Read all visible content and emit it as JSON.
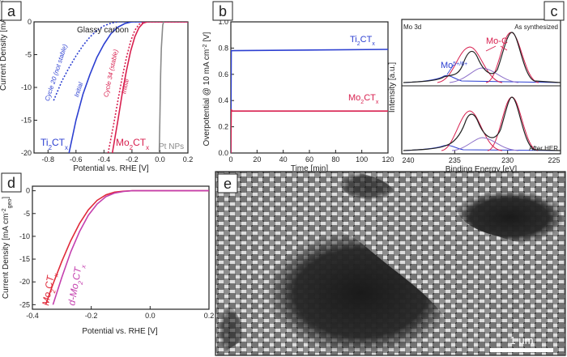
{
  "panels": {
    "a": {
      "letter": "a",
      "chart_data": {
        "type": "line",
        "xlabel": "Potential vs. RHE [V]",
        "ylabel": "Current Density [mA cm",
        "ylabel_sup": "-2",
        "ylabel_sub": "geo",
        "ylabel_end": "]",
        "xlim": [
          -0.9,
          0.2
        ],
        "ylim": [
          -20,
          0
        ],
        "xticks": [
          -0.8,
          -0.6,
          -0.4,
          -0.2,
          0.0,
          0.2
        ],
        "yticks": [
          0,
          -5,
          -10,
          -15,
          -20
        ],
        "xtick_labels": [
          "-0.8",
          "-0.6",
          "-0.4",
          "-0.2",
          "0.0",
          "0.2"
        ],
        "ytick_labels": [
          "0",
          "-5",
          "-10",
          "-15",
          "-20"
        ],
        "series": [
          {
            "x": [
              -0.65,
              -0.6,
              -0.55,
              -0.5,
              -0.45,
              -0.4,
              -0.35,
              -0.3,
              -0.25,
              -0.2,
              0.2
            ],
            "y": [
              -20,
              -15,
              -11,
              -8,
              -5.4,
              -3.4,
              -1.8,
              -0.8,
              -0.25,
              0,
              0
            ],
            "color": "#2c3fd1",
            "dash": false
          },
          {
            "x": [
              -0.76,
              -0.7,
              -0.65,
              -0.6,
              -0.55,
              -0.5,
              -0.45,
              -0.4,
              -0.35,
              -0.3,
              0.2
            ],
            "y": [
              -12,
              -9,
              -7,
              -5.2,
              -3.6,
              -2.3,
              -1.3,
              -0.6,
              -0.2,
              0,
              0
            ],
            "color": "#2c3fd1",
            "dash": true
          },
          {
            "x": [
              -0.34,
              -0.3,
              -0.27,
              -0.24,
              -0.21,
              -0.18,
              -0.15,
              -0.12,
              -0.09,
              0.2
            ],
            "y": [
              -20,
              -15,
              -11,
              -7.5,
              -4.5,
              -2.3,
              -0.9,
              -0.2,
              0,
              0
            ],
            "color": "#d8204f",
            "dash": false
          },
          {
            "x": [
              -0.37,
              -0.33,
              -0.3,
              -0.27,
              -0.24,
              -0.21,
              -0.18,
              -0.15,
              -0.12,
              -0.09,
              0.2
            ],
            "y": [
              -20,
              -15.5,
              -12,
              -8.5,
              -5.5,
              -3,
              -1.3,
              -0.4,
              -0.05,
              0,
              0
            ],
            "color": "#d8204f",
            "dash": true
          },
          {
            "x": [
              -0.005,
              0,
              0.005,
              0.01,
              0.02,
              0.03
            ],
            "y": [
              -20,
              -14,
              -8,
              -4,
              -0.5,
              0.3
            ],
            "color": "#8a8a8a",
            "dash": false
          }
        ]
      },
      "title_text": "Glassy carbon",
      "label_cycle20": "Cycle  20 (not stable)",
      "label_initial_blue": "Initial",
      "label_cycle34": "Cycle  34 (stable)",
      "label_initial_red": "Initial",
      "label_ti": "Ti",
      "label_ti_sub": "2",
      "label_ti_end": "CT",
      "label_ti_x": "x",
      "label_mo": "Mo",
      "label_mo_sub": "2",
      "label_mo_end": "CT",
      "label_mo_x": "x",
      "label_pt": "Pt NPs"
    },
    "b": {
      "letter": "b",
      "chart_data": {
        "type": "line",
        "xlabel": "Time [min]",
        "ylabel": "Overpotential @ 10 mA cm",
        "ylabel_sup": "-2",
        "ylabel_end": " [V]",
        "xlim": [
          0,
          120
        ],
        "ylim": [
          0,
          1.0
        ],
        "xticks": [
          0,
          20,
          40,
          60,
          80,
          100,
          120
        ],
        "yticks": [
          0.0,
          0.2,
          0.4,
          0.6,
          0.8,
          1.0
        ],
        "xtick_labels": [
          "0",
          "20",
          "40",
          "60",
          "80",
          "100",
          "120"
        ],
        "ytick_labels": [
          "0.0",
          "0.2",
          "0.4",
          "0.6",
          "0.8",
          "1.0"
        ],
        "series": [
          {
            "x": [
              0,
              0.3,
              1,
              120
            ],
            "y": [
              0,
              0.78,
              0.78,
              0.79
            ],
            "color": "#2c3fd1"
          },
          {
            "x": [
              0,
              0.3,
              1,
              120
            ],
            "y": [
              0,
              0.33,
              0.32,
              0.32
            ],
            "color": "#d8204f"
          }
        ]
      },
      "label_ti": "Ti",
      "label_ti_sub": "2",
      "label_ti_end": "CT",
      "label_ti_x": "x",
      "label_mo": "Mo",
      "label_mo_sub": "2",
      "label_mo_end": "CT",
      "label_mo_x": "x"
    },
    "c": {
      "letter": "c",
      "chart_data": {
        "type": "line",
        "xlabel": "Binding Energy [eV]",
        "ylabel": "Intensity [a.u.]",
        "xlim": [
          240,
          225
        ],
        "xticks": [
          240,
          235,
          230,
          225
        ],
        "xtick_labels": [
          "240",
          "235",
          "230",
          "225"
        ],
        "top_left": "Mo 3d",
        "top_right": "As synthesized",
        "bottom_right": "After HER",
        "peak_moc": "Mo-C",
        "peak_mo": "Mo",
        "peak_mo_sup": "5+/6+"
      }
    },
    "d": {
      "letter": "d",
      "chart_data": {
        "type": "line",
        "xlabel": "Potential vs. RHE [V]",
        "ylabel": "Current Density [mA cm",
        "ylabel_sup": "-2",
        "ylabel_sub": "geo",
        "ylabel_end": "]",
        "xlim": [
          -0.4,
          0.2
        ],
        "ylim": [
          -26,
          1
        ],
        "xticks": [
          -0.4,
          -0.2,
          0.0,
          0.2
        ],
        "yticks": [
          0,
          -5,
          -10,
          -15,
          -20,
          -25
        ],
        "xtick_labels": [
          "-0.4",
          "-0.2",
          "0.0",
          "0.2"
        ],
        "ytick_labels": [
          "0",
          "-5",
          "-10",
          "-15",
          "-20",
          "-25"
        ],
        "series": [
          {
            "x": [
              -0.355,
              -0.33,
              -0.3,
              -0.27,
              -0.24,
              -0.21,
              -0.18,
              -0.15,
              -0.12,
              -0.09,
              -0.06,
              0.2
            ],
            "y": [
              -25,
              -20.5,
              -15.5,
              -11,
              -7.2,
              -4.2,
              -2.1,
              -0.9,
              -0.3,
              -0.1,
              0,
              0
            ],
            "color": "#e02a3a"
          },
          {
            "x": [
              -0.33,
              -0.3,
              -0.27,
              -0.24,
              -0.21,
              -0.18,
              -0.15,
              -0.12,
              -0.09,
              -0.06,
              0.2
            ],
            "y": [
              -25,
              -19,
              -13.5,
              -9,
              -5.4,
              -2.9,
              -1.3,
              -0.5,
              -0.15,
              0,
              0
            ],
            "color": "#c43fae"
          }
        ]
      },
      "label_mo": "Mo",
      "label_mo_sub": "2",
      "label_mo_end": "CT",
      "label_mo_x": "x",
      "label_dmo": "d-Mo",
      "label_dmo_sub": "2",
      "label_dmo_end": "CT",
      "label_dmo_x": "x"
    },
    "e": {
      "letter": "e",
      "scalebar": "1 μm"
    }
  },
  "colors": {
    "ti": "#2c3fd1",
    "mo": "#d8204f",
    "pt": "#8a8a8a",
    "dmo": "#c43fae",
    "fit_purple": "#8d6fc9"
  }
}
